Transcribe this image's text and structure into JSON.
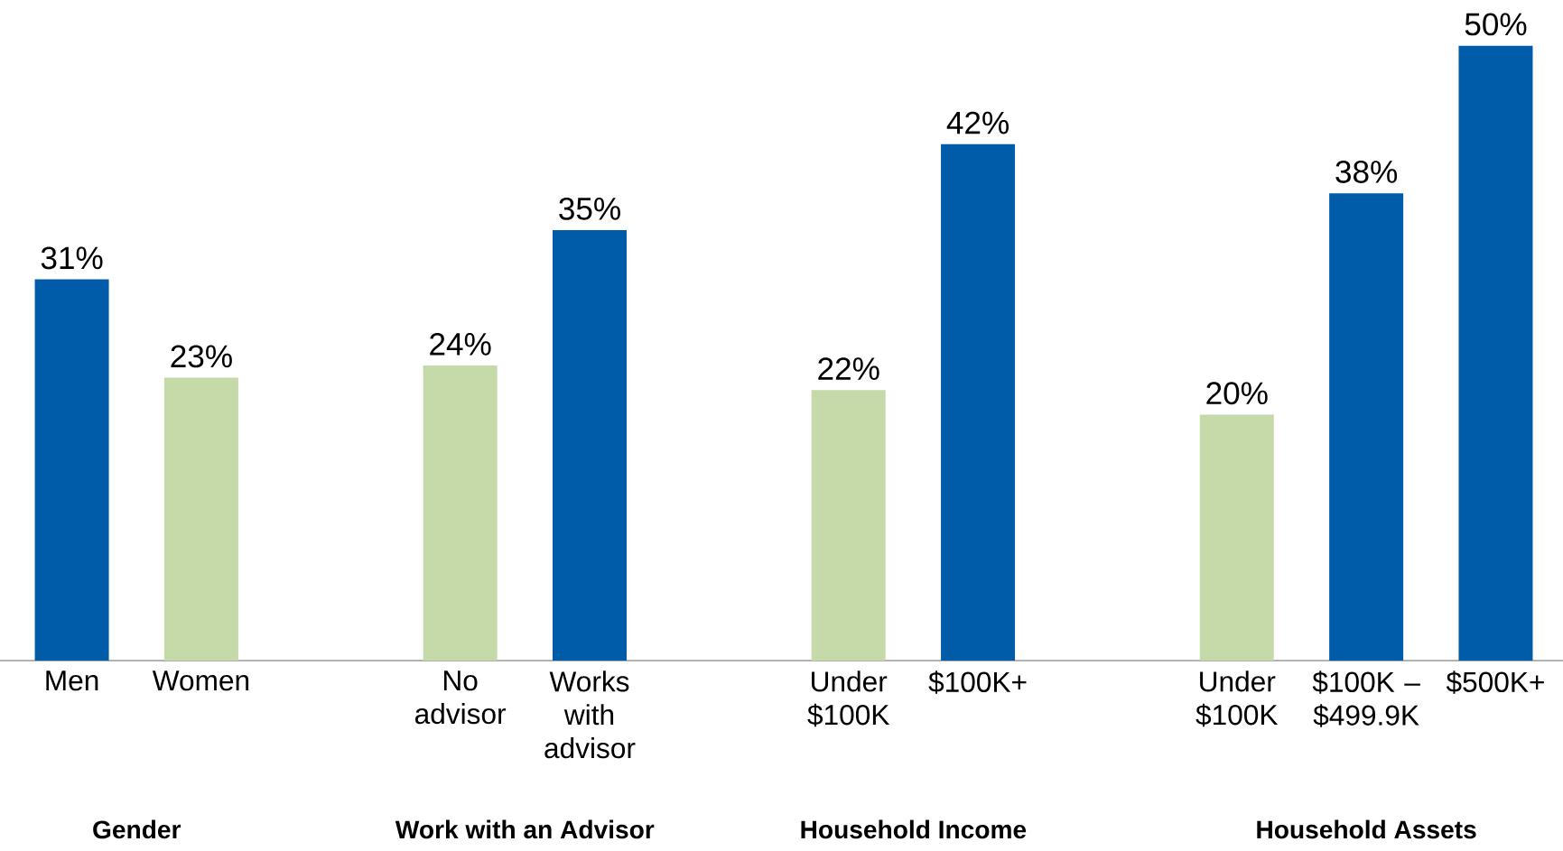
{
  "chart_data": {
    "type": "bar",
    "categories": [
      "Men",
      "Women",
      null,
      "No advisor",
      "Works with advisor",
      null,
      "Under $100K",
      "$100K+",
      null,
      "Under $100K",
      "$100K – $499.9K",
      "$500K+"
    ],
    "values": [
      31,
      23,
      null,
      24,
      35,
      null,
      22,
      42,
      null,
      20,
      38,
      50
    ],
    "colors": [
      "#005ca9",
      "#c5d9a9",
      null,
      "#c5d9a9",
      "#005ca9",
      null,
      "#c5d9a9",
      "#005ca9",
      null,
      "#c5d9a9",
      "#005ca9",
      "#005ca9"
    ],
    "value_labels": [
      "31%",
      "23%",
      null,
      "24%",
      "35%",
      null,
      "22%",
      "42%",
      null,
      "20%",
      "38%",
      "50%"
    ],
    "annotations": [
      "Gender",
      "Work with an Advisor",
      "Household Income",
      "Household Assets"
    ]
  }
}
